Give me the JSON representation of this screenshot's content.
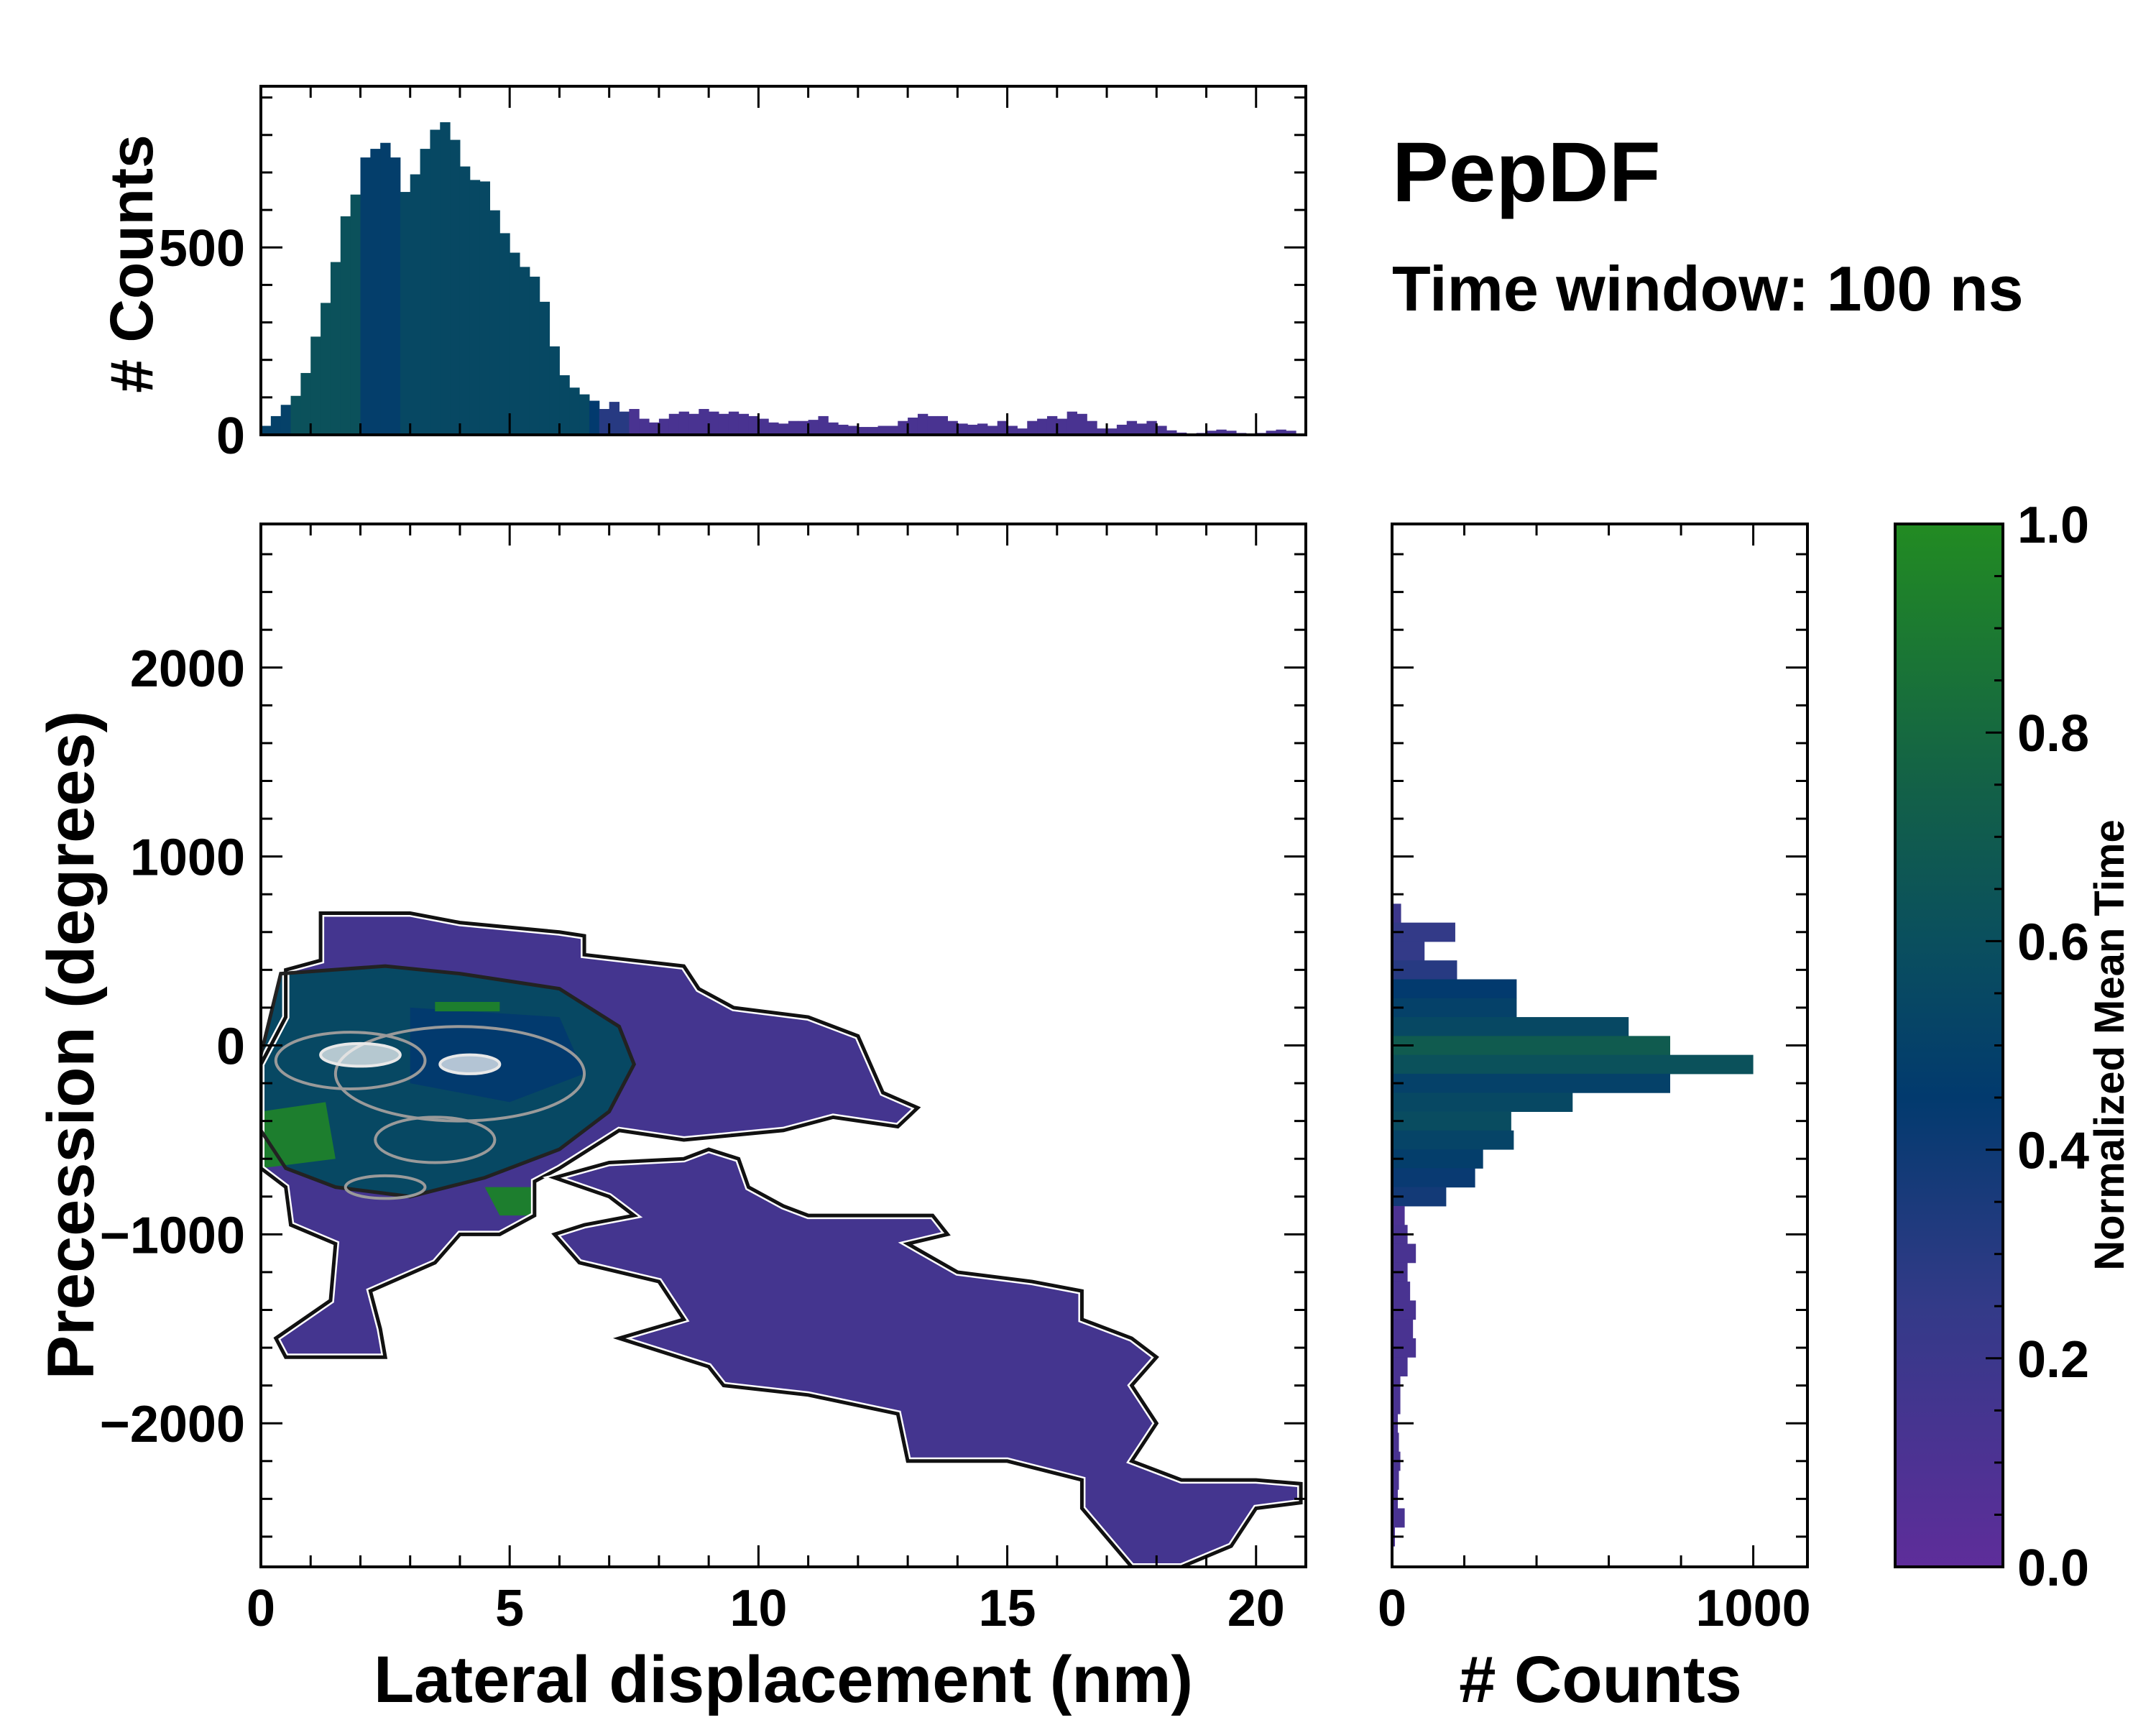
{
  "title": "PepDF",
  "subtitle": "Time window: 100 ns",
  "chart_data": [
    {
      "type": "heatmap",
      "name": "main",
      "xlabel": "Lateral displacement (nm)",
      "ylabel": "Precession (degrees)",
      "xlim": [
        0,
        21
      ],
      "ylim": [
        -2760,
        2760
      ],
      "xticks": [
        0,
        5,
        10,
        15,
        20
      ],
      "xtick_labels": [
        "0",
        "5",
        "10",
        "15",
        "20"
      ],
      "yticks": [
        2000,
        1000,
        0,
        -1000,
        -2000
      ],
      "ytick_labels": [
        "2000",
        "1000",
        "0",
        "−1000",
        "−2000"
      ],
      "regions": [
        {
          "value": 0.15,
          "polygon": [
            [
              1.2,
              700
            ],
            [
              3,
              700
            ],
            [
              4,
              650
            ],
            [
              6,
              600
            ],
            [
              6.5,
              580
            ],
            [
              6.5,
              480
            ],
            [
              8.5,
              420
            ],
            [
              8.8,
              300
            ],
            [
              9.5,
              200
            ],
            [
              11,
              150
            ],
            [
              12,
              50
            ],
            [
              12.5,
              -250
            ],
            [
              13.2,
              -330
            ],
            [
              12.8,
              -430
            ],
            [
              11.5,
              -380
            ],
            [
              10.5,
              -450
            ],
            [
              8.5,
              -500
            ],
            [
              7.2,
              -450
            ],
            [
              6,
              -650
            ],
            [
              5.5,
              -720
            ],
            [
              5.5,
              -900
            ],
            [
              4.8,
              -1000
            ],
            [
              4.0,
              -1000
            ],
            [
              3.5,
              -1150
            ],
            [
              2.2,
              -1300
            ],
            [
              2.4,
              -1500
            ],
            [
              2.5,
              -1650
            ],
            [
              0.5,
              -1650
            ],
            [
              0.3,
              -1550
            ],
            [
              1.4,
              -1350
            ],
            [
              1.5,
              -1050
            ],
            [
              0.6,
              -950
            ],
            [
              0.5,
              -750
            ],
            [
              0,
              -650
            ],
            [
              0,
              -100
            ],
            [
              0.5,
              150
            ],
            [
              0.5,
              400
            ],
            [
              1.2,
              450
            ]
          ]
        },
        {
          "value": 0.15,
          "polygon": [
            [
              5.9,
              -700
            ],
            [
              7,
              -620
            ],
            [
              8.5,
              -600
            ],
            [
              9,
              -550
            ],
            [
              9.6,
              -600
            ],
            [
              9.8,
              -750
            ],
            [
              10.5,
              -850
            ],
            [
              11,
              -900
            ],
            [
              13.5,
              -900
            ],
            [
              13.8,
              -1000
            ],
            [
              13,
              -1050
            ],
            [
              14,
              -1200
            ],
            [
              15.5,
              -1250
            ],
            [
              16.5,
              -1300
            ],
            [
              16.5,
              -1450
            ],
            [
              17.5,
              -1550
            ],
            [
              18,
              -1650
            ],
            [
              17.5,
              -1800
            ],
            [
              18,
              -2000
            ],
            [
              17.5,
              -2200
            ],
            [
              18.5,
              -2300
            ],
            [
              20,
              -2300
            ],
            [
              20.9,
              -2320
            ],
            [
              20.9,
              -2420
            ],
            [
              20,
              -2450
            ],
            [
              19.5,
              -2650
            ],
            [
              18.5,
              -2760
            ],
            [
              17.5,
              -2760
            ],
            [
              16.5,
              -2450
            ],
            [
              16.5,
              -2300
            ],
            [
              15,
              -2200
            ],
            [
              13,
              -2200
            ],
            [
              12.8,
              -1950
            ],
            [
              11,
              -1850
            ],
            [
              9.3,
              -1800
            ],
            [
              9,
              -1700
            ],
            [
              7.2,
              -1550
            ],
            [
              8.5,
              -1450
            ],
            [
              8,
              -1250
            ],
            [
              6.4,
              -1150
            ],
            [
              5.9,
              -1000
            ],
            [
              6.5,
              -950
            ],
            [
              7.5,
              -900
            ],
            [
              7,
              -800
            ]
          ]
        },
        {
          "value": 0.55,
          "polygon": [
            [
              0.4,
              380
            ],
            [
              2.5,
              420
            ],
            [
              4,
              380
            ],
            [
              6,
              300
            ],
            [
              7.2,
              100
            ],
            [
              7.5,
              -100
            ],
            [
              7,
              -350
            ],
            [
              6,
              -550
            ],
            [
              4.5,
              -700
            ],
            [
              3,
              -800
            ],
            [
              1.5,
              -750
            ],
            [
              0.5,
              -650
            ],
            [
              0,
              -450
            ],
            [
              0,
              -50
            ]
          ]
        },
        {
          "value": 0.45,
          "polygon": [
            [
              3,
              200
            ],
            [
              6,
              150
            ],
            [
              6.5,
              -150
            ],
            [
              5,
              -300
            ],
            [
              3,
              -200
            ]
          ]
        },
        {
          "value": 0.92,
          "polygon": [
            [
              0,
              -350
            ],
            [
              1.3,
              -300
            ],
            [
              1.5,
              -600
            ],
            [
              0,
              -650
            ]
          ]
        },
        {
          "value": 0.92,
          "polygon": [
            [
              4.5,
              -750
            ],
            [
              5.5,
              -750
            ],
            [
              5.5,
              -900
            ],
            [
              4.8,
              -900
            ]
          ]
        },
        {
          "value": 0.92,
          "polygon": [
            [
              3.5,
              230
            ],
            [
              4.8,
              230
            ],
            [
              4.8,
              180
            ],
            [
              3.5,
              180
            ]
          ]
        }
      ],
      "density_contours": [
        {
          "level": "high",
          "center": [
            1.8,
            -80
          ],
          "radii": [
            1.5,
            150
          ]
        },
        {
          "level": "high",
          "center": [
            4.0,
            -150
          ],
          "radii": [
            2.5,
            250
          ]
        },
        {
          "level": "high",
          "center": [
            3.5,
            -500
          ],
          "radii": [
            1.2,
            120
          ]
        },
        {
          "level": "high",
          "center": [
            2.5,
            -750
          ],
          "radii": [
            0.8,
            60
          ]
        },
        {
          "level": "peak",
          "center": [
            2.0,
            -50
          ],
          "radii": [
            0.8,
            60
          ]
        },
        {
          "level": "peak",
          "center": [
            4.2,
            -100
          ],
          "radii": [
            0.6,
            50
          ]
        }
      ]
    },
    {
      "type": "bar",
      "name": "top-histogram",
      "ylabel": "# Counts",
      "xlim": [
        0,
        21
      ],
      "ylim": [
        0,
        930
      ],
      "yticks": [
        0,
        500
      ],
      "ytick_labels": [
        "0",
        "500"
      ],
      "bin_width": 0.2,
      "x_start": 0,
      "values": [
        24,
        50,
        80,
        104,
        165,
        262,
        352,
        461,
        583,
        641,
        740,
        763,
        779,
        740,
        648,
        695,
        763,
        814,
        834,
        787,
        716,
        680,
        676,
        599,
        538,
        486,
        448,
        422,
        355,
        236,
        159,
        126,
        108,
        91,
        69,
        88,
        62,
        69,
        43,
        33,
        43,
        56,
        62,
        56,
        69,
        62,
        56,
        62,
        56,
        50,
        43,
        33,
        30,
        37,
        37,
        40,
        50,
        33,
        27,
        24,
        21,
        21,
        24,
        24,
        37,
        46,
        56,
        50,
        50,
        37,
        30,
        27,
        30,
        24,
        37,
        24,
        17,
        37,
        43,
        50,
        43,
        62,
        56,
        37,
        17,
        17,
        27,
        37,
        30,
        37,
        24,
        12,
        6,
        3,
        5,
        11,
        14,
        11,
        5,
        2,
        5,
        11,
        14,
        11,
        2
      ],
      "mean_time": [
        0.5,
        0.5,
        0.5,
        0.62,
        0.62,
        0.62,
        0.62,
        0.62,
        0.62,
        0.62,
        0.48,
        0.48,
        0.48,
        0.48,
        0.55,
        0.55,
        0.55,
        0.55,
        0.55,
        0.55,
        0.55,
        0.55,
        0.55,
        0.55,
        0.55,
        0.55,
        0.55,
        0.55,
        0.55,
        0.55,
        0.55,
        0.55,
        0.55,
        0.45,
        0.3,
        0.3,
        0.3,
        0.12,
        0.12,
        0.12,
        0.12,
        0.12,
        0.12,
        0.12,
        0.12,
        0.12,
        0.12,
        0.12,
        0.12,
        0.12,
        0.12,
        0.12,
        0.12,
        0.12,
        0.12,
        0.12,
        0.12,
        0.12,
        0.12,
        0.12,
        0.12,
        0.12,
        0.12,
        0.12,
        0.12,
        0.12,
        0.12,
        0.12,
        0.12,
        0.12,
        0.12,
        0.12,
        0.12,
        0.12,
        0.12,
        0.12,
        0.12,
        0.12,
        0.12,
        0.12,
        0.12,
        0.12,
        0.12,
        0.12,
        0.12,
        0.12,
        0.12,
        0.12,
        0.12,
        0.12,
        0.12,
        0.12,
        0.12,
        0.12,
        0.12,
        0.12,
        0.12,
        0.12,
        0.12,
        0.12,
        0.12,
        0.12,
        0.12,
        0.12,
        0.12
      ]
    },
    {
      "type": "bar",
      "orientation": "horizontal",
      "name": "right-histogram",
      "xlabel": "# Counts",
      "xlim": [
        0,
        1150
      ],
      "xticks": [
        0,
        1000
      ],
      "xtick_labels": [
        "0",
        "1000"
      ],
      "bin_height": 100,
      "y_bins": [
        700,
        600,
        500,
        400,
        300,
        200,
        100,
        0,
        -100,
        -200,
        -300,
        -400,
        -500,
        -600,
        -700,
        -800,
        -900,
        -1000,
        -1100,
        -1200,
        -1300,
        -1400,
        -1500,
        -1600,
        -1700,
        -1800,
        -1900,
        -2000,
        -2100,
        -2200,
        -2300,
        -2400,
        -2500,
        -2600
      ],
      "values": [
        25,
        175,
        90,
        180,
        345,
        345,
        655,
        770,
        1000,
        770,
        500,
        330,
        337,
        252,
        230,
        150,
        35,
        43,
        66,
        43,
        50,
        66,
        58,
        66,
        43,
        23,
        23,
        16,
        19,
        23,
        19,
        16,
        35,
        8
      ],
      "mean_time": [
        0.2,
        0.25,
        0.25,
        0.3,
        0.45,
        0.5,
        0.55,
        0.7,
        0.62,
        0.5,
        0.55,
        0.58,
        0.52,
        0.48,
        0.42,
        0.38,
        0.1,
        0.12,
        0.12,
        0.12,
        0.12,
        0.12,
        0.12,
        0.12,
        0.12,
        0.12,
        0.12,
        0.12,
        0.12,
        0.12,
        0.12,
        0.12,
        0.12,
        0.12
      ]
    },
    {
      "type": "colorbar",
      "name": "colorbar",
      "label": "Normalized Mean Time",
      "range": [
        0,
        1
      ],
      "ticks": [
        0,
        0.2,
        0.4,
        0.6,
        0.8,
        1.0
      ],
      "tick_labels": [
        "0.0",
        "0.2",
        "0.4",
        "0.6",
        "0.8",
        "1.0"
      ],
      "colormap": [
        [
          0,
          "#5e2d9a"
        ],
        [
          0.25,
          "#333a88"
        ],
        [
          0.45,
          "#023a6e"
        ],
        [
          0.6,
          "#0a4f5e"
        ],
        [
          0.75,
          "#136147"
        ],
        [
          1,
          "#228b22"
        ]
      ]
    }
  ]
}
